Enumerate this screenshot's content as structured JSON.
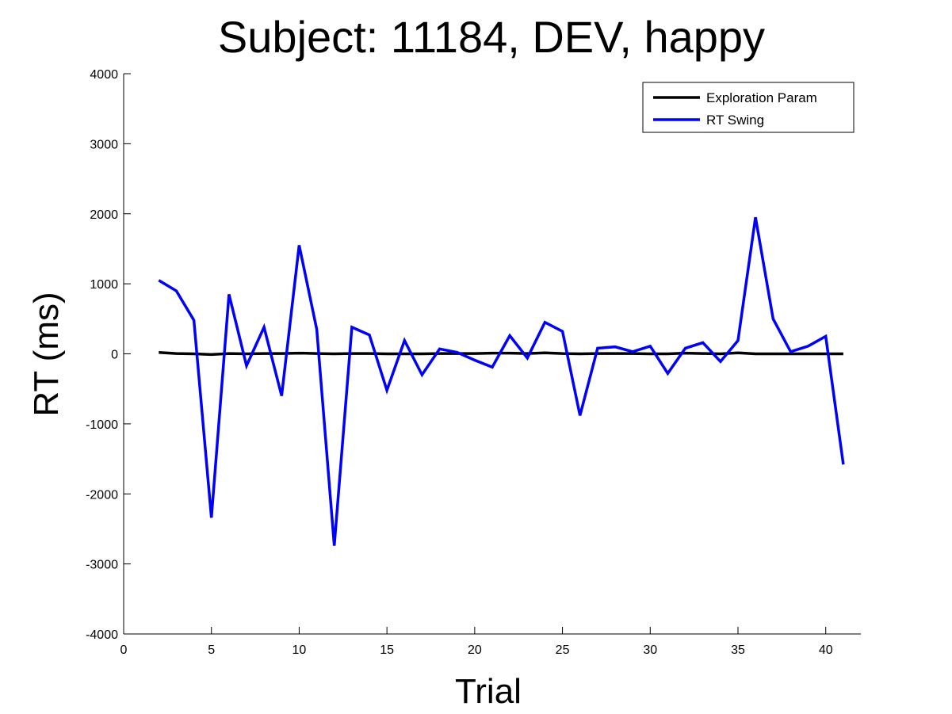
{
  "chart_data": {
    "type": "line",
    "title": "Subject: 11184, DEV, happy",
    "xlabel": "Trial",
    "ylabel": "RT (ms)",
    "xlim": [
      0,
      42
    ],
    "ylim": [
      -4000,
      4000
    ],
    "xticks": [
      0,
      5,
      10,
      15,
      20,
      25,
      30,
      35,
      40
    ],
    "yticks": [
      4000,
      3000,
      2000,
      1000,
      0,
      -1000,
      -2000,
      -3000,
      -4000
    ],
    "grid": false,
    "legend_position": "top-right",
    "x": [
      2,
      3,
      4,
      5,
      6,
      7,
      8,
      9,
      10,
      11,
      12,
      13,
      14,
      15,
      16,
      17,
      18,
      19,
      20,
      21,
      22,
      23,
      24,
      25,
      26,
      27,
      28,
      29,
      30,
      31,
      32,
      33,
      34,
      35,
      36,
      37,
      38,
      39,
      40,
      41
    ],
    "series": [
      {
        "name": "Exploration Param",
        "color": "#000000",
        "values": [
          20,
          5,
          0,
          -10,
          5,
          0,
          5,
          5,
          10,
          5,
          0,
          5,
          5,
          0,
          0,
          0,
          5,
          5,
          5,
          10,
          10,
          5,
          15,
          5,
          0,
          5,
          5,
          5,
          0,
          0,
          10,
          5,
          0,
          15,
          0,
          0,
          0,
          0,
          0,
          0
        ]
      },
      {
        "name": "RT Swing",
        "color": "#0000ff",
        "values": [
          1050,
          900,
          480,
          -2340,
          850,
          -170,
          380,
          -600,
          1550,
          350,
          -2740,
          380,
          270,
          -520,
          190,
          -300,
          70,
          20,
          -90,
          -190,
          260,
          -60,
          450,
          320,
          -880,
          80,
          100,
          30,
          110,
          -280,
          80,
          160,
          -110,
          190,
          1950,
          500,
          30,
          110,
          250,
          -1580
        ]
      }
    ]
  }
}
